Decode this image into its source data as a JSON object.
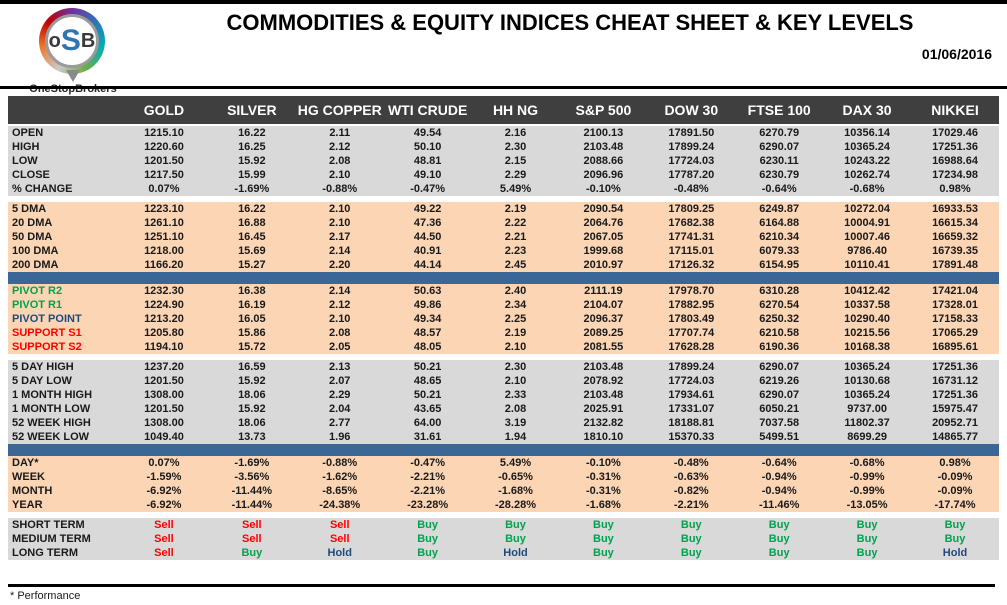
{
  "page": {
    "title": "COMMODITIES & EQUITY INDICES CHEAT SHEET & KEY LEVELS",
    "date": "01/06/2016",
    "footnote": "* Performance",
    "logo": {
      "monogram_left": "o",
      "monogram_mid": "S",
      "monogram_right": "B",
      "brand": "OneStopBrokers"
    }
  },
  "colors": {
    "header_row_bg": "#3F3F3F",
    "gray_row_bg": "#D9D9D9",
    "peach_row_bg": "#FCD5B4",
    "blue_bar": "#3A6795",
    "buy_green": "#00A24E",
    "sell_red": "#FF0000",
    "hold_navy": "#1F497D"
  },
  "chart_data": {
    "type": "table",
    "title": "COMMODITIES & EQUITY INDICES CHEAT SHEET & KEY LEVELS",
    "date": "01/06/2016",
    "columns": [
      "GOLD",
      "SILVER",
      "HG COPPER",
      "WTI CRUDE",
      "HH NG",
      "S&P 500",
      "DOW 30",
      "FTSE 100",
      "DAX 30",
      "NIKKEI"
    ],
    "sections": [
      {
        "name": "ohlc",
        "style": "gray",
        "divider_before": "small-gap",
        "rows": [
          {
            "label": "OPEN",
            "values": [
              "1215.10",
              "16.22",
              "2.11",
              "49.54",
              "2.16",
              "2100.13",
              "17891.50",
              "6270.79",
              "10356.14",
              "17029.46"
            ]
          },
          {
            "label": "HIGH",
            "values": [
              "1220.60",
              "16.25",
              "2.12",
              "50.10",
              "2.30",
              "2103.48",
              "17899.24",
              "6290.07",
              "10365.24",
              "17251.36"
            ]
          },
          {
            "label": "LOW",
            "values": [
              "1201.50",
              "15.92",
              "2.08",
              "48.81",
              "2.15",
              "2088.66",
              "17724.03",
              "6230.11",
              "10243.22",
              "16988.64"
            ]
          },
          {
            "label": "CLOSE",
            "values": [
              "1217.50",
              "15.99",
              "2.10",
              "49.10",
              "2.29",
              "2096.96",
              "17787.20",
              "6230.79",
              "10262.74",
              "17234.98"
            ]
          },
          {
            "label": "% CHANGE",
            "values": [
              "0.07%",
              "-1.69%",
              "-0.88%",
              "-0.47%",
              "5.49%",
              "-0.10%",
              "-0.48%",
              "-0.64%",
              "-0.68%",
              "0.98%"
            ]
          }
        ]
      },
      {
        "name": "moving-averages",
        "style": "peach",
        "divider_before": "gap",
        "rows": [
          {
            "label": "5 DMA",
            "values": [
              "1223.10",
              "16.22",
              "2.10",
              "49.22",
              "2.19",
              "2090.54",
              "17809.25",
              "6249.87",
              "10272.04",
              "16933.53"
            ]
          },
          {
            "label": "20 DMA",
            "values": [
              "1261.10",
              "16.88",
              "2.10",
              "47.36",
              "2.22",
              "2064.76",
              "17682.38",
              "6164.88",
              "10004.91",
              "16615.34"
            ]
          },
          {
            "label": "50 DMA",
            "values": [
              "1251.10",
              "16.45",
              "2.17",
              "44.50",
              "2.21",
              "2067.05",
              "17741.31",
              "6210.34",
              "10007.46",
              "16659.32"
            ]
          },
          {
            "label": "100 DMA",
            "values": [
              "1218.00",
              "15.69",
              "2.14",
              "40.91",
              "2.23",
              "1999.68",
              "17115.01",
              "6079.33",
              "9786.40",
              "16739.35"
            ]
          },
          {
            "label": "200 DMA",
            "values": [
              "1166.20",
              "15.27",
              "2.20",
              "44.14",
              "2.45",
              "2010.97",
              "17126.32",
              "6154.95",
              "10110.41",
              "17891.48"
            ]
          }
        ]
      },
      {
        "name": "pivots",
        "style": "peach",
        "divider_before": "bar",
        "rows": [
          {
            "label": "PIVOT R2",
            "label_color": "green",
            "values": [
              "1232.30",
              "16.38",
              "2.14",
              "50.63",
              "2.40",
              "2111.19",
              "17978.70",
              "6310.28",
              "10412.42",
              "17421.04"
            ]
          },
          {
            "label": "PIVOT R1",
            "label_color": "green",
            "values": [
              "1224.90",
              "16.19",
              "2.12",
              "49.86",
              "2.34",
              "2104.07",
              "17882.95",
              "6270.54",
              "10337.58",
              "17328.01"
            ]
          },
          {
            "label": "PIVOT POINT",
            "label_color": "navy",
            "values": [
              "1213.20",
              "16.05",
              "2.10",
              "49.34",
              "2.25",
              "2096.37",
              "17803.49",
              "6250.32",
              "10290.40",
              "17158.33"
            ]
          },
          {
            "label": "SUPPORT S1",
            "label_color": "red",
            "values": [
              "1205.80",
              "15.86",
              "2.08",
              "48.57",
              "2.19",
              "2089.25",
              "17707.74",
              "6210.58",
              "10215.56",
              "17065.29"
            ]
          },
          {
            "label": "SUPPORT S2",
            "label_color": "red",
            "values": [
              "1194.10",
              "15.72",
              "2.05",
              "48.05",
              "2.10",
              "2081.55",
              "17628.28",
              "6190.36",
              "10168.38",
              "16895.61"
            ]
          }
        ]
      },
      {
        "name": "ranges",
        "style": "gray",
        "divider_before": "gap",
        "rows": [
          {
            "label": "5 DAY HIGH",
            "values": [
              "1237.20",
              "16.59",
              "2.13",
              "50.21",
              "2.30",
              "2103.48",
              "17899.24",
              "6290.07",
              "10365.24",
              "17251.36"
            ]
          },
          {
            "label": "5 DAY LOW",
            "values": [
              "1201.50",
              "15.92",
              "2.07",
              "48.65",
              "2.10",
              "2078.92",
              "17724.03",
              "6219.26",
              "10130.68",
              "16731.12"
            ]
          },
          {
            "label": "1 MONTH HIGH",
            "values": [
              "1308.00",
              "18.06",
              "2.29",
              "50.21",
              "2.33",
              "2103.48",
              "17934.61",
              "6290.07",
              "10365.24",
              "17251.36"
            ]
          },
          {
            "label": "1 MONTH LOW",
            "values": [
              "1201.50",
              "15.92",
              "2.04",
              "43.65",
              "2.08",
              "2025.91",
              "17331.07",
              "6050.21",
              "9737.00",
              "15975.47"
            ]
          },
          {
            "label": "52 WEEK HIGH",
            "values": [
              "1308.00",
              "18.06",
              "2.77",
              "64.00",
              "3.19",
              "2132.82",
              "18188.81",
              "7037.58",
              "11802.37",
              "20952.71"
            ]
          },
          {
            "label": "52 WEEK LOW",
            "values": [
              "1049.40",
              "13.73",
              "1.96",
              "31.61",
              "1.94",
              "1810.10",
              "15370.33",
              "5499.51",
              "8699.29",
              "14865.77"
            ]
          }
        ]
      },
      {
        "name": "performance",
        "style": "peach",
        "divider_before": "bar",
        "rows": [
          {
            "label": "DAY*",
            "values": [
              "0.07%",
              "-1.69%",
              "-0.88%",
              "-0.47%",
              "5.49%",
              "-0.10%",
              "-0.48%",
              "-0.64%",
              "-0.68%",
              "0.98%"
            ]
          },
          {
            "label": "WEEK",
            "values": [
              "-1.59%",
              "-3.56%",
              "-1.62%",
              "-2.21%",
              "-0.65%",
              "-0.31%",
              "-0.63%",
              "-0.94%",
              "-0.99%",
              "-0.09%"
            ]
          },
          {
            "label": "MONTH",
            "values": [
              "-6.92%",
              "-11.44%",
              "-8.65%",
              "-2.21%",
              "-1.68%",
              "-0.31%",
              "-0.82%",
              "-0.94%",
              "-0.99%",
              "-0.09%"
            ]
          },
          {
            "label": "YEAR",
            "values": [
              "-6.92%",
              "-11.44%",
              "-24.38%",
              "-23.28%",
              "-28.28%",
              "-1.68%",
              "-2.21%",
              "-11.46%",
              "-13.05%",
              "-17.74%"
            ]
          }
        ]
      },
      {
        "name": "signals",
        "style": "gray",
        "divider_before": "gap",
        "colorize_values": true,
        "rows": [
          {
            "label": "SHORT TERM",
            "values": [
              "Sell",
              "Sell",
              "Sell",
              "Buy",
              "Buy",
              "Buy",
              "Buy",
              "Buy",
              "Buy",
              "Buy"
            ]
          },
          {
            "label": "MEDIUM TERM",
            "values": [
              "Sell",
              "Sell",
              "Sell",
              "Buy",
              "Buy",
              "Buy",
              "Buy",
              "Buy",
              "Buy",
              "Buy"
            ]
          },
          {
            "label": "LONG TERM",
            "values": [
              "Sell",
              "Buy",
              "Hold",
              "Buy",
              "Hold",
              "Buy",
              "Buy",
              "Buy",
              "Buy",
              "Hold"
            ]
          }
        ]
      }
    ],
    "signal_color_map": {
      "Buy": "green",
      "Sell": "red",
      "Hold": "navy"
    },
    "footnote": "* Performance"
  }
}
